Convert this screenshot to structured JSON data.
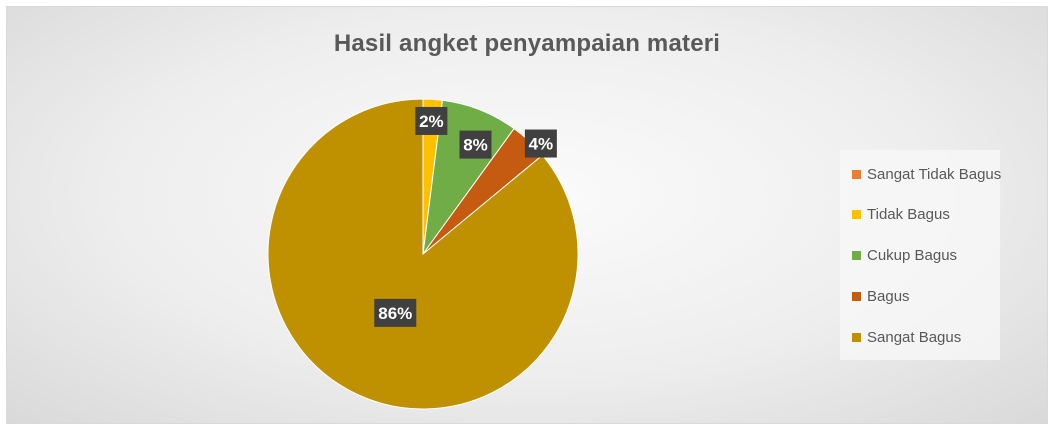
{
  "chart_data": {
    "type": "pie",
    "title": "Hasil angket penyampaian materi",
    "categories": [
      "Sangat Tidak Bagus",
      "Tidak Bagus",
      "Cukup Bagus",
      "Bagus",
      "Sangat Bagus"
    ],
    "values": [
      0,
      2,
      8,
      4,
      86
    ],
    "data_labels": [
      "",
      "2%",
      "8%",
      "4%",
      "86%"
    ],
    "colors": [
      "#ED7D31",
      "#FFC000",
      "#70AD47",
      "#C55A11",
      "#BF9000"
    ],
    "legend_position": "right",
    "legend": [
      "Sangat Tidak Bagus",
      "Tidak Bagus",
      "Cukup Bagus",
      "Bagus",
      "Sangat Bagus"
    ]
  }
}
